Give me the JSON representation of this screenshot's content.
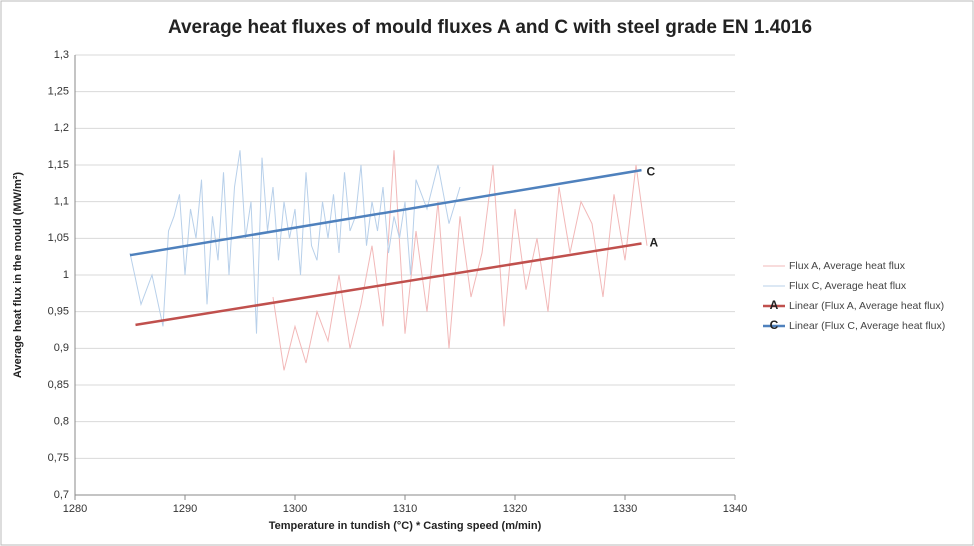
{
  "chart_data": {
    "type": "line",
    "title": "Average heat fluxes of mould fluxes A and C with steel grade EN 1.4016",
    "x_label": "Temperature in tundish (°C) * Casting speed (m/min)",
    "y_label": "Average heat flux in the mould (MW/m²)",
    "xlim": [
      1280,
      1340
    ],
    "xticks": [
      1280,
      1290,
      1300,
      1310,
      1320,
      1330,
      1340
    ],
    "ylim": [
      0.7,
      1.3
    ],
    "yticks": [
      {
        "value": 0.7,
        "label": "0,7"
      },
      {
        "value": 0.75,
        "label": "0,75"
      },
      {
        "value": 0.8,
        "label": "0,8"
      },
      {
        "value": 0.85,
        "label": "0,85"
      },
      {
        "value": 0.9,
        "label": "0,9"
      },
      {
        "value": 0.95,
        "label": "0,95"
      },
      1,
      {
        "value": 1.05,
        "label": "1,05"
      },
      {
        "value": 1.1,
        "label": "1,1"
      },
      {
        "value": 1.15,
        "label": "1,15"
      },
      {
        "value": 1.2,
        "label": "1,2"
      },
      {
        "value": 1.25,
        "label": "1,25"
      },
      {
        "value": 1.3,
        "label": "1,3"
      }
    ],
    "grid": true,
    "legend": "right",
    "annotations": [
      "C",
      "A"
    ],
    "series": [
      {
        "name": "Flux A, Average heat flux",
        "color": "#f2b8b8",
        "width": 1,
        "x": [
          1298,
          1299,
          1300,
          1301,
          1302,
          1303,
          1304,
          1305,
          1306,
          1307,
          1308,
          1309,
          1310,
          1311,
          1312,
          1313,
          1314,
          1315,
          1316,
          1317,
          1318,
          1319,
          1320,
          1321,
          1322,
          1323,
          1324,
          1325,
          1326,
          1327,
          1328,
          1329,
          1330,
          1331,
          1332
        ],
        "values": [
          0.97,
          0.87,
          0.93,
          0.88,
          0.95,
          0.91,
          1.0,
          0.9,
          0.96,
          1.04,
          0.93,
          1.17,
          0.92,
          1.06,
          0.95,
          1.1,
          0.9,
          1.08,
          0.97,
          1.03,
          1.15,
          0.93,
          1.09,
          0.98,
          1.05,
          0.95,
          1.12,
          1.03,
          1.1,
          1.07,
          0.97,
          1.11,
          1.02,
          1.15,
          1.04
        ]
      },
      {
        "name": "Flux C, Average heat flux",
        "color": "#b8d0ea",
        "width": 1,
        "x": [
          1285,
          1286,
          1287,
          1288,
          1288.5,
          1289,
          1289.5,
          1290,
          1290.5,
          1291,
          1291.5,
          1292,
          1292.5,
          1293,
          1293.5,
          1294,
          1294.5,
          1295,
          1295.5,
          1296,
          1296.5,
          1297,
          1297.5,
          1298,
          1298.5,
          1299,
          1299.5,
          1300,
          1300.5,
          1301,
          1301.5,
          1302,
          1302.5,
          1303,
          1303.5,
          1304,
          1304.5,
          1305,
          1305.5,
          1306,
          1306.5,
          1307,
          1307.5,
          1308,
          1308.5,
          1309,
          1309.5,
          1310,
          1310.5,
          1311,
          1312,
          1313,
          1314,
          1315
        ],
        "values": [
          1.03,
          0.96,
          1.0,
          0.93,
          1.06,
          1.08,
          1.11,
          1.0,
          1.09,
          1.05,
          1.13,
          0.96,
          1.08,
          1.02,
          1.14,
          1.0,
          1.12,
          1.17,
          1.05,
          1.1,
          0.92,
          1.16,
          1.06,
          1.12,
          1.02,
          1.1,
          1.05,
          1.09,
          1.0,
          1.14,
          1.04,
          1.02,
          1.1,
          1.05,
          1.11,
          1.03,
          1.14,
          1.06,
          1.08,
          1.15,
          1.04,
          1.1,
          1.06,
          1.12,
          1.03,
          1.08,
          1.05,
          1.1,
          1.0,
          1.13,
          1.09,
          1.15,
          1.07,
          1.12
        ]
      },
      {
        "name": "Linear (Flux A, Average heat flux)",
        "color": "#c0504d",
        "width": 2.5,
        "x": [
          1285.5,
          1331.5
        ],
        "values": [
          0.932,
          1.043
        ]
      },
      {
        "name": "Linear (Flux C, Average heat flux)",
        "color": "#4f81bd",
        "width": 2.5,
        "x": [
          1285,
          1331.5
        ],
        "values": [
          1.027,
          1.143
        ]
      }
    ]
  }
}
